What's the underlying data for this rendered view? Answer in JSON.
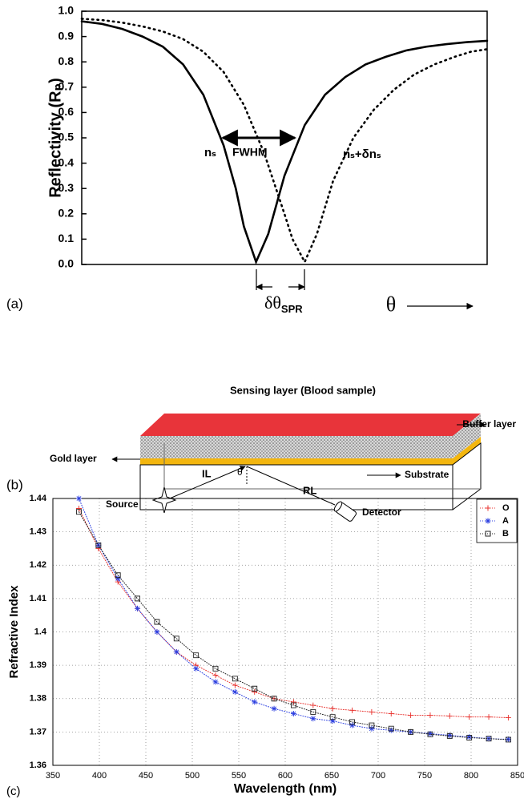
{
  "panel_labels": [
    "(a)",
    "(b)",
    "(c)"
  ],
  "chart_data": [
    {
      "type": "line",
      "ylabel": "Reflectivity (Rₚ)",
      "xlabel": "θ",
      "xlim": [
        0,
        100
      ],
      "ylim": [
        0,
        1
      ],
      "yticks": [
        {
          "value": 0,
          "label": "0.0"
        },
        0.1,
        0.2,
        0.3,
        0.4,
        0.5,
        0.6,
        0.7,
        0.8,
        0.9,
        {
          "value": 1,
          "label": "1.0"
        }
      ],
      "grid": false,
      "annotations": {
        "fwhm": "FWHM",
        "ns": "nₛ",
        "ns_shift": "nₛ+δnₛ",
        "shift": {
          "text": "δθ",
          "sub": "SPR"
        }
      },
      "series": [
        {
          "color": "#000000",
          "dash": "solid",
          "x": [
            0,
            5,
            10,
            15,
            20,
            25,
            30,
            35,
            38,
            40,
            43,
            46,
            50,
            55,
            60,
            65,
            70,
            75,
            80,
            85,
            90,
            95,
            100
          ],
          "values": [
            0.96,
            0.95,
            0.93,
            0.9,
            0.86,
            0.79,
            0.67,
            0.47,
            0.3,
            0.15,
            0.01,
            0.12,
            0.35,
            0.55,
            0.67,
            0.74,
            0.79,
            0.82,
            0.845,
            0.86,
            0.87,
            0.878,
            0.883
          ]
        },
        {
          "color": "#000000",
          "dash": "dotted",
          "x": [
            0,
            5,
            10,
            15,
            20,
            25,
            30,
            35,
            40,
            45,
            50,
            52,
            55,
            58,
            62,
            67,
            72,
            77,
            82,
            87,
            92,
            96,
            100
          ],
          "values": [
            0.97,
            0.965,
            0.955,
            0.94,
            0.92,
            0.89,
            0.84,
            0.76,
            0.63,
            0.44,
            0.2,
            0.1,
            0.01,
            0.12,
            0.33,
            0.5,
            0.61,
            0.69,
            0.75,
            0.79,
            0.82,
            0.84,
            0.85
          ]
        }
      ]
    },
    {
      "type": "line",
      "ylabel": "Refractive Index",
      "xlabel": "Wavelength (nm)",
      "xlim": [
        350,
        850
      ],
      "ylim": [
        1.36,
        1.44
      ],
      "xticks": [
        350,
        400,
        450,
        500,
        550,
        600,
        650,
        700,
        750,
        800,
        850
      ],
      "yticks": [
        1.36,
        1.37,
        1.38,
        1.39,
        1.4,
        1.41,
        1.42,
        1.43,
        1.44
      ],
      "grid": true,
      "legend": "upper right",
      "series": [
        {
          "name": "O",
          "color": "#e8302c",
          "dash": "dotted",
          "marker": "plus",
          "x": [
            378,
            399,
            420,
            441,
            462,
            483,
            504,
            525,
            546,
            567,
            588,
            609,
            630,
            651,
            672,
            693,
            714,
            735,
            756,
            777,
            798,
            819,
            840
          ],
          "values": [
            1.437,
            1.425,
            1.415,
            1.407,
            1.4,
            1.394,
            1.39,
            1.387,
            1.384,
            1.382,
            1.38,
            1.379,
            1.378,
            1.377,
            1.3765,
            1.376,
            1.3755,
            1.375,
            1.375,
            1.3748,
            1.3745,
            1.3745,
            1.3743
          ]
        },
        {
          "name": "A",
          "color": "#2b3ee0",
          "dash": "dotted",
          "marker": "star",
          "x": [
            378,
            399,
            420,
            441,
            462,
            483,
            504,
            525,
            546,
            567,
            588,
            609,
            630,
            651,
            672,
            693,
            714,
            735,
            756,
            777,
            798,
            819,
            840
          ],
          "values": [
            1.44,
            1.426,
            1.416,
            1.407,
            1.4,
            1.394,
            1.389,
            1.385,
            1.382,
            1.379,
            1.377,
            1.3755,
            1.374,
            1.3733,
            1.372,
            1.371,
            1.3705,
            1.37,
            1.3695,
            1.369,
            1.3685,
            1.368,
            1.3678
          ]
        },
        {
          "name": "B",
          "color": "#222222",
          "dash": "dotted",
          "marker": "square",
          "x": [
            378,
            399,
            420,
            441,
            462,
            483,
            504,
            525,
            546,
            567,
            588,
            609,
            630,
            651,
            672,
            693,
            714,
            735,
            756,
            777,
            798,
            819,
            840
          ],
          "values": [
            1.436,
            1.426,
            1.417,
            1.41,
            1.403,
            1.398,
            1.393,
            1.389,
            1.386,
            1.383,
            1.38,
            1.378,
            1.376,
            1.3745,
            1.373,
            1.372,
            1.371,
            1.37,
            1.3693,
            1.3688,
            1.3683,
            1.368,
            1.3677
          ]
        }
      ]
    }
  ],
  "diagram": {
    "sensing_layer": "Sensing layer (Blood sample)",
    "buffer_layer": "Buffer layer",
    "gold_layer": "Gold layer",
    "substrate": "Substrate",
    "incident": "IL",
    "angle": "θ",
    "reflected": "RL",
    "source": "Source",
    "detector": "Detector"
  }
}
